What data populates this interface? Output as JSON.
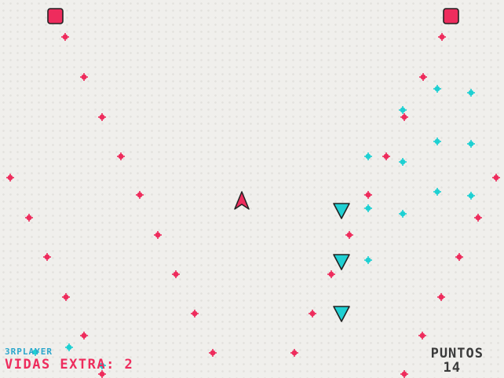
{
  "hud": {
    "brand": "3RPLAYER",
    "lives_text": "VIDAS EXTRA: 2",
    "score_label": "PUNTOS",
    "score_value": "14"
  },
  "colors": {
    "enemy_red": "#ee2c5d",
    "ally_cyan": "#1fd0d3",
    "outline": "#222222",
    "brand_blue": "#2aa6cc",
    "score_text": "#3a3a3a"
  },
  "icons": {
    "player": "player-ship-icon",
    "enemy_turret": "red-square-turret-icon",
    "ally_ship": "cyan-triangle-ship-icon"
  }
}
